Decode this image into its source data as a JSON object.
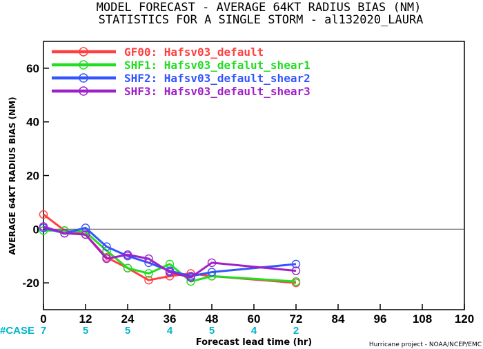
{
  "header": {
    "title_line1": "MODEL FORECAST - AVERAGE 64KT RADIUS BIAS (NM)",
    "title_line2": "STATISTICS FOR A SINGLE STORM - al132020_LAURA"
  },
  "footer": {
    "credit": "Hurricane project - NOAA/NCEP/EMC"
  },
  "case_label": "#CASE",
  "case_color": "#00b5c8",
  "chart_data": {
    "type": "line",
    "xlabel": "Forecast lead time (hr)",
    "ylabel": "AVERAGE 64KT RADIUS BIAS (NM)",
    "xlim": [
      0,
      120
    ],
    "ylim": [
      -30,
      70
    ],
    "xticks": [
      0,
      12,
      24,
      36,
      48,
      60,
      72,
      84,
      96,
      108,
      120
    ],
    "yticks": [
      -20,
      0,
      20,
      40,
      60
    ],
    "zero_line": true,
    "grid": false,
    "legend_position": "top-left",
    "case_counts": [
      {
        "x": 0,
        "n": "7"
      },
      {
        "x": 12,
        "n": "5"
      },
      {
        "x": 24,
        "n": "5"
      },
      {
        "x": 36,
        "n": "4"
      },
      {
        "x": 48,
        "n": "5"
      },
      {
        "x": 60,
        "n": "4"
      },
      {
        "x": 72,
        "n": "2"
      }
    ],
    "series": [
      {
        "name": "GF00: Hafsv03_default",
        "color": "#ff4040",
        "points": [
          [
            0,
            5.5
          ],
          [
            6,
            -0.5
          ],
          [
            12,
            -2
          ],
          [
            18,
            -10.5
          ],
          [
            24,
            -14.5
          ],
          [
            30,
            -19
          ],
          [
            36,
            -17.5
          ],
          [
            42,
            -16.5
          ],
          [
            48,
            -17.5
          ],
          [
            72,
            -20
          ]
        ]
      },
      {
        "name": "SHF1: Hafsv03_defalut_shear1",
        "color": "#22dd22",
        "points": [
          [
            0,
            -0.5
          ],
          [
            6,
            -0.5
          ],
          [
            12,
            -1
          ],
          [
            18,
            -8
          ],
          [
            24,
            -14.5
          ],
          [
            30,
            -16.5
          ],
          [
            36,
            -13
          ],
          [
            42,
            -19.5
          ],
          [
            48,
            -17.5
          ],
          [
            72,
            -19.5
          ]
        ]
      },
      {
        "name": "SHF2: Hafsv03_default_shear2",
        "color": "#3355ff",
        "points": [
          [
            0,
            0.5
          ],
          [
            6,
            -1.5
          ],
          [
            12,
            0.5
          ],
          [
            18,
            -6.5
          ],
          [
            24,
            -10
          ],
          [
            30,
            -12.5
          ],
          [
            36,
            -15.5
          ],
          [
            42,
            -17.5
          ],
          [
            48,
            -16
          ],
          [
            72,
            -13
          ]
        ]
      },
      {
        "name": "SHF3: Hafsv03_default_shear3",
        "color": "#a020c8",
        "points": [
          [
            0,
            1
          ],
          [
            6,
            -1.5
          ],
          [
            12,
            -2
          ],
          [
            18,
            -11
          ],
          [
            24,
            -9.5
          ],
          [
            30,
            -11
          ],
          [
            36,
            -16
          ],
          [
            42,
            -18
          ],
          [
            48,
            -12.5
          ],
          [
            72,
            -15.5
          ]
        ]
      }
    ]
  }
}
